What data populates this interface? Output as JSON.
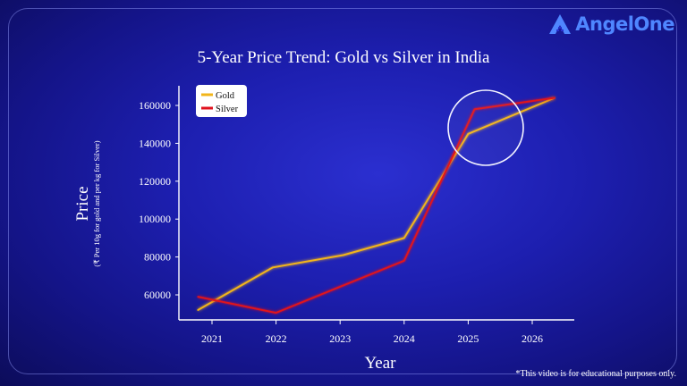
{
  "brand": {
    "name": "AngelOne",
    "color": "#4f86ff"
  },
  "footnote": "*This video is for educational purposes only.",
  "chart_data": {
    "type": "line",
    "title": "5-Year Price Trend: Gold vs Silver in India",
    "xlabel": "Year",
    "ylabel": "Price",
    "ylabel_sub": "(₹ Per 10g for gold and per kg for Silver)",
    "x_ticks": [
      "2021",
      "2022",
      "2023",
      "2024",
      "2025",
      "2026"
    ],
    "y_ticks": [
      60000,
      80000,
      100000,
      120000,
      140000,
      160000
    ],
    "xlim": [
      2021,
      2026
    ],
    "ylim": [
      52000,
      166000
    ],
    "grid": false,
    "legend_position": "top-left",
    "highlight": "circle around 2025",
    "series": [
      {
        "name": "Gold",
        "color": "#f2b51a",
        "points": [
          [
            2020.78,
            52000
          ],
          [
            2021.95,
            74500
          ],
          [
            2023.05,
            81000
          ],
          [
            2024.0,
            90000
          ],
          [
            2025.0,
            145000
          ],
          [
            2026.35,
            164000
          ]
        ]
      },
      {
        "name": "Silver",
        "color": "#e0121e",
        "points": [
          [
            2020.78,
            59000
          ],
          [
            2022.0,
            50500
          ],
          [
            2023.05,
            65000
          ],
          [
            2024.0,
            78000
          ],
          [
            2025.1,
            158000
          ],
          [
            2026.35,
            164000
          ]
        ]
      }
    ]
  }
}
